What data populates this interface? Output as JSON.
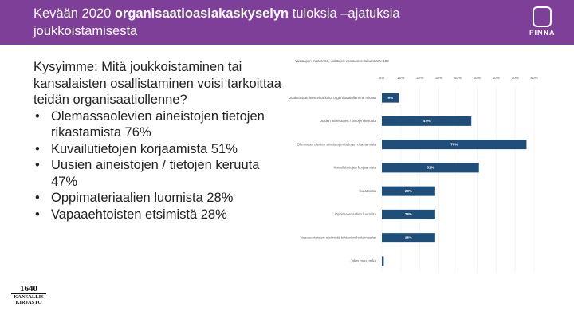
{
  "header": {
    "title_parts": [
      "Kevään 2020 ",
      "organisaatioasiakaskyselyn",
      " tuloksia –ajatuksia joukkoistamisesta"
    ],
    "logo": "FINNA"
  },
  "body": {
    "question": "Kysyimme: Mitä joukkoistaminen tai kansalaisten osallistaminen voisi tarkoittaa teidän organisaatiollenne?",
    "bullets": [
      "Olemassaolevien aineistojen tietojen rikastamista 76%",
      "Kuvailutietojen korjaamista 51%",
      "Uusien aineistojen / tietojen keruuta 47%",
      "Oppimateriaalien luomista 28%",
      "Vapaaehtoisten etsimistä 28%"
    ]
  },
  "footer": {
    "logo_year": "1640",
    "logo_lines": [
      "KANSALLIS",
      "KIRJASTO"
    ]
  },
  "chart_data": {
    "type": "barh",
    "subtitle": "Vastaajien määrä: 68, valittujen vastausten lukumäärä: 182",
    "categories": [
      "Joukkoistaminen ei tarkoita organisaatiollemme mitään",
      "Uusien aineistojen / tietojen keruuta",
      "Olemassa olevien aineistojen tietojen rikastamista",
      "Kuvailutietojen korjaamista",
      "Kuratointia",
      "Oppimateriaalien luomista",
      "Vapaaehtoisten etsimistä tehtävien hoitamiseksi",
      "Jokin muu, mikä"
    ],
    "values": [
      9,
      47,
      76,
      51,
      28,
      28,
      28,
      1
    ],
    "value_labels": [
      "9%",
      "47%",
      "76%",
      "51%",
      "28%",
      "28%",
      "28%",
      null
    ],
    "color": "#1f4e79",
    "xlim": [
      0,
      80
    ],
    "xticks": [
      {
        "value": 0,
        "label": "0%"
      },
      {
        "value": 10,
        "label": "10%"
      },
      {
        "value": 20,
        "label": "20%"
      },
      {
        "value": 30,
        "label": "30%"
      },
      {
        "value": 40,
        "label": "40%"
      },
      {
        "value": 50,
        "label": "50%"
      },
      {
        "value": 60,
        "label": "60%"
      },
      {
        "value": 70,
        "label": "70%"
      },
      {
        "value": 80,
        "label": "80%"
      }
    ],
    "grid": true
  }
}
